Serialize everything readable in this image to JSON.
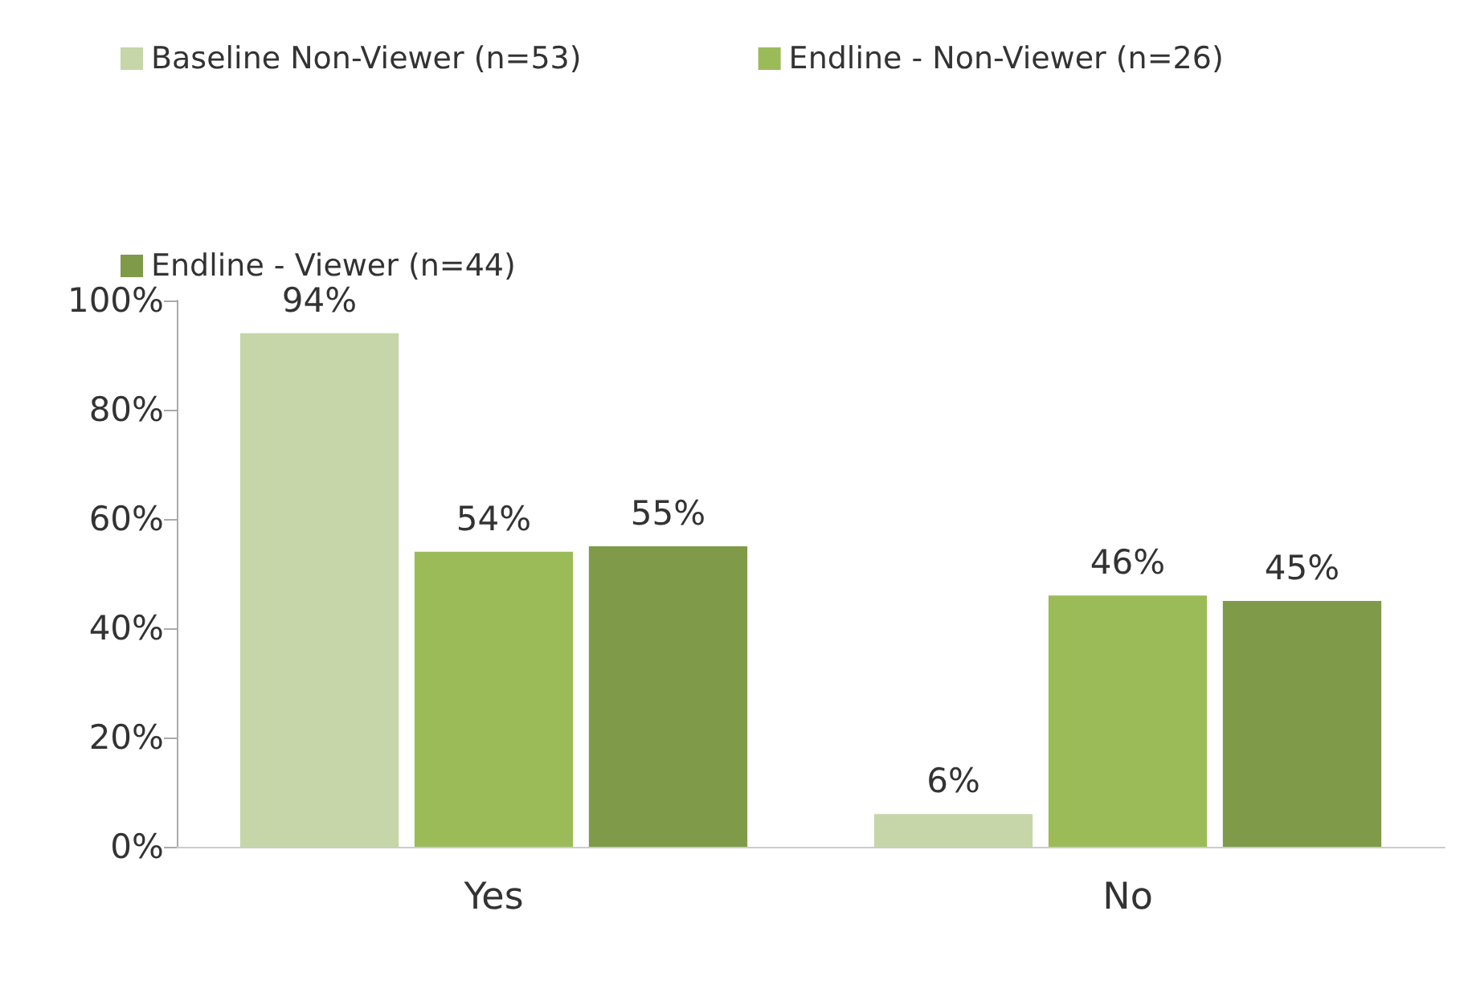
{
  "chart_data": {
    "type": "bar",
    "categories": [
      "Yes",
      "No"
    ],
    "series": [
      {
        "name": "Baseline Non-Viewer (n=53)",
        "color": "#c6d6a8",
        "values": [
          94,
          6
        ],
        "value_labels": [
          "94%",
          "6%"
        ]
      },
      {
        "name": "Endline - Non-Viewer (n=26)",
        "color": "#9bbb59",
        "values": [
          54,
          46
        ],
        "value_labels": [
          "54%",
          "46%"
        ]
      },
      {
        "name": "Endline - Viewer (n=44)",
        "color": "#7f9a48",
        "values": [
          55,
          45
        ],
        "value_labels": [
          "55%",
          "45%"
        ]
      }
    ],
    "ylim": [
      0,
      100
    ],
    "yticks": [
      {
        "value": 0,
        "label": "0%"
      },
      {
        "value": 20,
        "label": "20%"
      },
      {
        "value": 40,
        "label": "40%"
      },
      {
        "value": 60,
        "label": "60%"
      },
      {
        "value": 80,
        "label": "80%"
      },
      {
        "value": 100,
        "label": "100%"
      }
    ],
    "grid": false,
    "legend": "top left"
  }
}
